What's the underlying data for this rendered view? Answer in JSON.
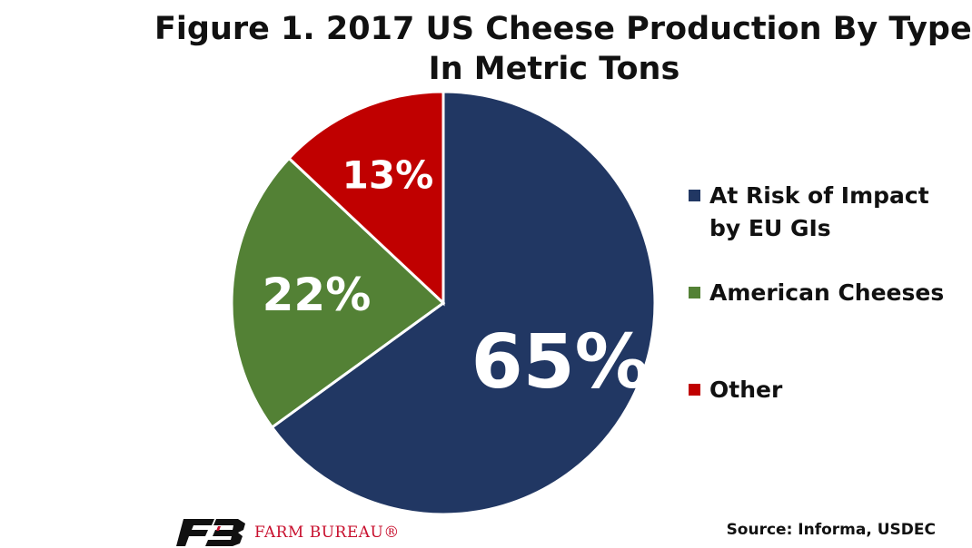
{
  "chart_data": {
    "type": "pie",
    "title": [
      "Figure 1. 2017 US Cheese Production By Type",
      "In Metric Tons"
    ],
    "categories": [
      "At Risk of Impact by EU GIs",
      "American Cheeses",
      "Other"
    ],
    "values": [
      65,
      22,
      13
    ],
    "labels": [
      "65%",
      "22%",
      "13%"
    ],
    "colors": [
      "#213763",
      "#538135",
      "#c00000"
    ],
    "legend_position": "right"
  },
  "source": "Source: Informa, USDEC",
  "logo": {
    "text": "FARM BUREAU®",
    "mark_color": "#111111",
    "text_color": "#c8102e"
  }
}
